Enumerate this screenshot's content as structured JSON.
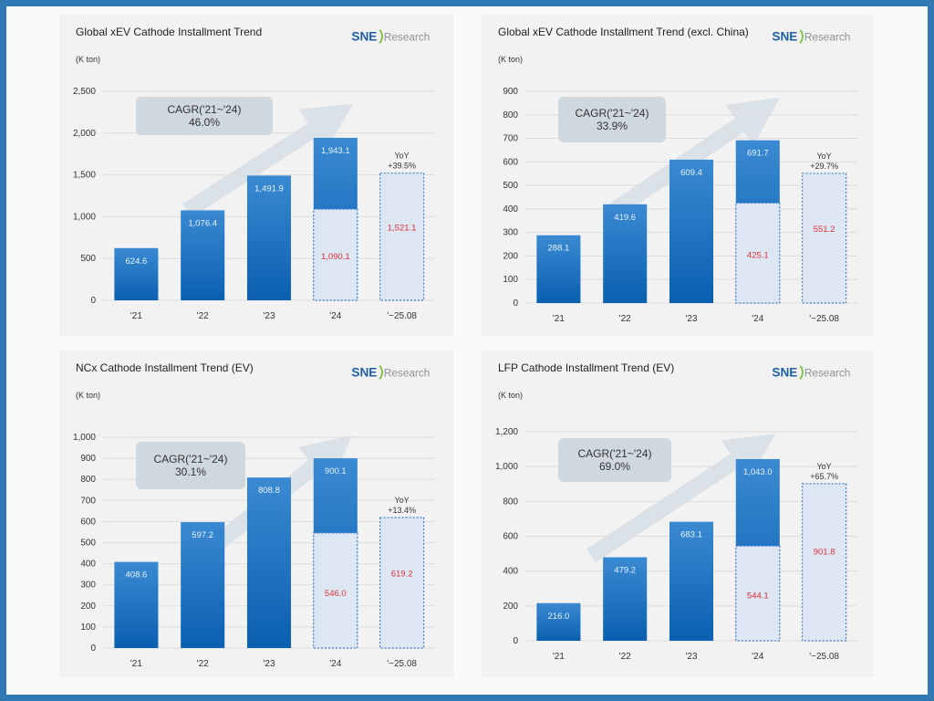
{
  "brand": {
    "logo_bold": "SNE",
    "logo_text": "Research",
    "colors": {
      "frame": "#2f7ab5",
      "bar_top": "#3a8ad2",
      "bar_bottom": "#0a5fb0",
      "partial_fill": "#dde6f3",
      "partial_border": "#3b7fd0",
      "partial_label": "#e0303a",
      "cagr_box": "#cfd8df",
      "arrow": "#d8e0e6"
    }
  },
  "chart_data": [
    {
      "type": "bar",
      "title": "Global xEV Cathode Installment Trend",
      "ylabel": "(K ton)",
      "categories": [
        "'21",
        "'22",
        "'23",
        "'24",
        "'~25.08"
      ],
      "values": [
        624.6,
        1076.4,
        1491.9,
        1943.1,
        1521.1
      ],
      "value_labels": [
        "624.6",
        "1,076.4",
        "1,491.9",
        "1,943.1",
        "1,521.1"
      ],
      "partial_2024_thru_aug": 1090.1,
      "partial_2024_label": "1,090.1",
      "yticks": [
        "0",
        "500",
        "1,000",
        "1,500",
        "2,000",
        "2,500"
      ],
      "ytick_values": [
        0,
        500,
        1000,
        1500,
        2000,
        2500
      ],
      "ylim": [
        0,
        2500
      ],
      "cagr_label": "CAGR('21~'24)",
      "cagr_value": "46.0%",
      "yoy_label": "YoY",
      "yoy_value": "+39.5%",
      "grid": true
    },
    {
      "type": "bar",
      "title": "Global xEV Cathode Installment Trend (excl. China)",
      "ylabel": "(K ton)",
      "categories": [
        "'21",
        "'22",
        "'23",
        "'24",
        "'~25.08"
      ],
      "values": [
        288.1,
        419.6,
        609.4,
        691.7,
        551.2
      ],
      "value_labels": [
        "288.1",
        "419.6",
        "609.4",
        "691.7",
        "551.2"
      ],
      "partial_2024_thru_aug": 425.1,
      "partial_2024_label": "425.1",
      "yticks": [
        "0",
        "100",
        "200",
        "300",
        "400",
        "500",
        "600",
        "700",
        "800",
        "900"
      ],
      "ytick_values": [
        0,
        100,
        200,
        300,
        400,
        500,
        600,
        700,
        800,
        900
      ],
      "ylim": [
        0,
        900
      ],
      "cagr_label": "CAGR('21~'24)",
      "cagr_value": "33.9%",
      "yoy_label": "YoY",
      "yoy_value": "+29.7%",
      "grid": true
    },
    {
      "type": "bar",
      "title": "NCx Cathode Installment Trend (EV)",
      "ylabel": "(K ton)",
      "categories": [
        "'21",
        "'22",
        "'23",
        "'24",
        "'~25.08"
      ],
      "values": [
        408.6,
        597.2,
        808.8,
        900.1,
        619.2
      ],
      "value_labels": [
        "408.6",
        "597.2",
        "808.8",
        "900.1",
        "619.2"
      ],
      "partial_2024_thru_aug": 546.0,
      "partial_2024_label": "546.0",
      "yticks": [
        "0",
        "100",
        "200",
        "300",
        "400",
        "500",
        "600",
        "700",
        "800",
        "900",
        "1,000"
      ],
      "ytick_values": [
        0,
        100,
        200,
        300,
        400,
        500,
        600,
        700,
        800,
        900,
        1000
      ],
      "ylim": [
        0,
        1000
      ],
      "cagr_label": "CAGR('21~'24)",
      "cagr_value": "30.1%",
      "yoy_label": "YoY",
      "yoy_value": "+13.4%",
      "grid": true
    },
    {
      "type": "bar",
      "title": "LFP Cathode Installment Trend (EV)",
      "ylabel": "(K ton)",
      "categories": [
        "'21",
        "'22",
        "'23",
        "'24",
        "'~25.08"
      ],
      "values": [
        216.0,
        479.2,
        683.1,
        1043.0,
        901.8
      ],
      "value_labels": [
        "216.0",
        "479.2",
        "683.1",
        "1,043.0",
        "901.8"
      ],
      "partial_2024_thru_aug": 544.1,
      "partial_2024_label": "544.1",
      "yticks": [
        "0",
        "200",
        "400",
        "600",
        "800",
        "1,000",
        "1,200"
      ],
      "ytick_values": [
        0,
        200,
        400,
        600,
        800,
        1000,
        1200
      ],
      "ylim": [
        0,
        1200
      ],
      "cagr_label": "CAGR('21~'24)",
      "cagr_value": "69.0%",
      "yoy_label": "YoY",
      "yoy_value": "+65.7%",
      "grid": true
    }
  ]
}
